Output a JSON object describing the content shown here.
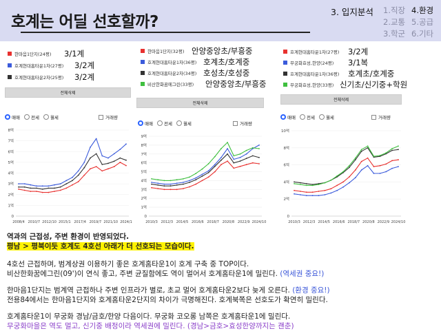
{
  "header": {
    "title": "호계는 어딜 선호할까?",
    "section": "3. 입지분석",
    "nav": [
      "1.직장",
      "4.환경",
      "2.교통",
      "5.공급",
      "3.학군",
      "6.기타"
    ],
    "active_nav": "4.환경"
  },
  "panels": [
    {
      "legend": [
        {
          "name": "한마음1단지(24평)",
          "color": "#e8312f",
          "note": "3/1계"
        },
        {
          "name": "호계현대홈타운1차(27평)",
          "color": "#3b5bdb",
          "note": "3/2계"
        },
        {
          "name": "호계현대홈타운2차(25평)",
          "color": "#333333",
          "note": "3/2계"
        }
      ],
      "delete_label": "전체삭제",
      "radios": [
        "매매",
        "전세",
        "월세"
      ],
      "checkbox": "거래량",
      "chart_data": {
        "type": "line",
        "y_ticks": [
          "8억",
          "7억",
          "6억",
          "5억",
          "4억",
          "3억",
          "2억",
          "1억",
          "0"
        ],
        "x_ticks": [
          "2008/4",
          "2010/7",
          "2012/10",
          "2015/1",
          "2017/4",
          "2019/7",
          "2021/10",
          "2024/1"
        ],
        "ylim": [
          0,
          8
        ],
        "series": [
          {
            "name": "한마음1단지(24평)",
            "color": "#e8312f",
            "values": [
              2.5,
              2.4,
              2.3,
              2.3,
              2.2,
              2.2,
              2.3,
              2.4,
              2.6,
              2.9,
              3.2,
              3.8,
              4.4,
              4.6,
              4.2,
              4.4,
              4.6,
              5.0,
              4.7
            ]
          },
          {
            "name": "호계현대홈타운1차(27평)",
            "color": "#3b5bdb",
            "values": [
              3.0,
              3.0,
              2.9,
              2.8,
              2.8,
              2.8,
              2.9,
              3.0,
              3.3,
              3.6,
              4.2,
              5.0,
              6.4,
              7.2,
              5.6,
              5.4,
              5.8,
              6.2,
              6.7
            ]
          },
          {
            "name": "호계현대홈타운2차(25평)",
            "color": "#333333",
            "values": [
              2.7,
              2.7,
              2.6,
              2.6,
              2.5,
              2.6,
              2.6,
              2.7,
              3.0,
              3.3,
              3.8,
              4.5,
              5.4,
              5.8,
              4.8,
              4.9,
              5.1,
              5.4,
              5.2
            ]
          }
        ]
      }
    },
    {
      "legend": [
        {
          "name": "한마음1단지(32평)",
          "color": "#e8312f",
          "note": "안양중앙초/부흥중"
        },
        {
          "name": "호계현대홈타운1차(36평)",
          "color": "#3b5bdb",
          "note": "호계초/호계중"
        },
        {
          "name": "호계현대홈타운2차(34평)",
          "color": "#333333",
          "note": "호성초/호성중"
        },
        {
          "name": "비산한화꿈에그린(33평)",
          "color": "#3fbf3f",
          "note": "안양중앙초/부흥중"
        }
      ],
      "delete_label": "전체삭제",
      "radios": [
        "매매",
        "전세",
        "월세"
      ],
      "checkbox": "거래량",
      "chart_data": {
        "type": "line",
        "y_ticks": [
          "9억",
          "8억",
          "7억",
          "6억",
          "5억",
          "4억",
          "3억",
          "2억",
          "1억",
          "0"
        ],
        "x_ticks": [
          "2010/3",
          "2012/3",
          "2014/5",
          "2016/6",
          "2018/7",
          "2020/8",
          "2022/9",
          "2024/10"
        ],
        "ylim": [
          0,
          9
        ],
        "series": [
          {
            "name": "한마음1단지(32평)",
            "color": "#e8312f",
            "values": [
              3.2,
              3.1,
              3.0,
              3.0,
              3.0,
              3.1,
              3.3,
              3.6,
              4.0,
              4.4,
              5.0,
              5.8,
              6.2,
              5.4,
              5.6,
              5.8,
              6.0,
              5.9
            ]
          },
          {
            "name": "호계현대홈타운1차(36평)",
            "color": "#3b5bdb",
            "values": [
              3.8,
              3.7,
              3.6,
              3.6,
              3.7,
              3.8,
              4.0,
              4.3,
              4.7,
              5.1,
              5.8,
              6.6,
              7.6,
              6.4,
              6.6,
              7.0,
              7.6,
              8.0
            ]
          },
          {
            "name": "호계현대홈타운2차(34평)",
            "color": "#333333",
            "values": [
              3.6,
              3.5,
              3.4,
              3.4,
              3.5,
              3.6,
              3.8,
              4.1,
              4.5,
              4.9,
              5.6,
              6.3,
              7.0,
              6.0,
              6.2,
              6.5,
              6.8,
              6.6
            ]
          },
          {
            "name": "비산한화꿈에그린(33평)",
            "color": "#3fbf3f",
            "values": [
              4.2,
              4.1,
              4.0,
              4.0,
              4.1,
              4.2,
              4.4,
              4.8,
              5.3,
              5.9,
              6.7,
              7.6,
              8.3,
              6.8,
              7.0,
              7.4,
              7.7,
              7.6
            ]
          }
        ]
      }
    },
    {
      "legend": [
        {
          "name": "호계현대홈타운1차(27평)",
          "color": "#e8312f",
          "note": "3/2계"
        },
        {
          "name": "무궁화효성,한양(24평)",
          "color": "#3b5bdb",
          "note": "3/1복"
        },
        {
          "name": "호계현대홈타운1차(36평)",
          "color": "#333333",
          "note": "호계초/호계중"
        },
        {
          "name": "무궁화효성,한양(33평)",
          "color": "#3fbf3f",
          "note": "신기초/신기중+학원"
        }
      ],
      "delete_label": "전체삭제",
      "radios": [
        "매매",
        "전세",
        "월세"
      ],
      "checkbox": "거래량",
      "chart_data": {
        "type": "line",
        "y_ticks": [
          "10억",
          "8억",
          "6억",
          "4억",
          "2억",
          "0"
        ],
        "x_ticks": [
          "2010/3",
          "2012/3",
          "2014/5",
          "2016/6",
          "2018/7",
          "2020/8",
          "2022/9",
          "2024/10"
        ],
        "ylim": [
          0,
          10
        ],
        "series": [
          {
            "name": "호계현대홈타운1차(27평)",
            "color": "#e8312f",
            "values": [
              3.0,
              2.9,
              2.8,
              2.8,
              2.9,
              3.0,
              3.2,
              3.6,
              4.0,
              4.6,
              5.4,
              6.4,
              6.8,
              5.8,
              5.9,
              6.1,
              6.5,
              6.6
            ]
          },
          {
            "name": "무궁화효성,한양(24평)",
            "color": "#3b5bdb",
            "values": [
              2.6,
              2.5,
              2.4,
              2.4,
              2.4,
              2.5,
              2.7,
              3.0,
              3.4,
              3.9,
              4.5,
              5.4,
              5.9,
              5.0,
              5.0,
              5.2,
              5.6,
              5.8
            ]
          },
          {
            "name": "호계현대홈타운1차(36평)",
            "color": "#333333",
            "values": [
              4.0,
              3.9,
              3.8,
              3.7,
              3.8,
              3.9,
              4.2,
              4.6,
              5.1,
              5.7,
              6.6,
              7.6,
              8.0,
              6.9,
              7.0,
              7.3,
              7.7,
              7.8
            ]
          },
          {
            "name": "무궁화효성,한양(33평)",
            "color": "#3fbf3f",
            "values": [
              3.8,
              3.7,
              3.6,
              3.6,
              3.7,
              3.9,
              4.2,
              4.7,
              5.2,
              5.9,
              6.8,
              7.8,
              8.2,
              7.0,
              7.1,
              7.4,
              7.9,
              8.2
            ]
          }
        ]
      }
    }
  ],
  "text": {
    "p1_bold": "역과의 근접성, 주변 환경이 반영되었다.",
    "p1_highlight": "평남 > 평북이듯 호계도 4호선 아래가 더 선호되는 모습이다.",
    "p2_line1": "4호선 근접하며, 범계상권 이용하기 좋은 호계홈타운1이 호계 구축 중 TOP이다.",
    "p2_line2": "비산한화꿈에그린(09')이 연식 좋고, 주변 균질함에도 역이 멀어서 호계홈타운1에 밀린다.",
    "p2_line2_note": "(역세권 중요!)",
    "p3_line1": "한마음1단지는 범계역 근접하나 주변 인프라가 별로, 초교 멀어 호계홈타운2보다 늦게 오른다.",
    "p3_line1_note": "(환경 중요!)",
    "p3_line2": "전용84에서는 한마음1단지와 호계홈타운2단지의 차이가 극명해진다. 호계북쪽은 선호도가 확연히 밀린다.",
    "p4_line1": "호계홈타운1이 무궁화 경남/금호/한양 다음이다. 무궁화 코오롱 남쪽은 호계홈타운1에 밀린다.",
    "p4_line2": "무궁화마을은 역도 멀고, 신기중 배정이라 역세권에 밀린다. (경남>금호>효성한양까지는 괜춘)"
  }
}
